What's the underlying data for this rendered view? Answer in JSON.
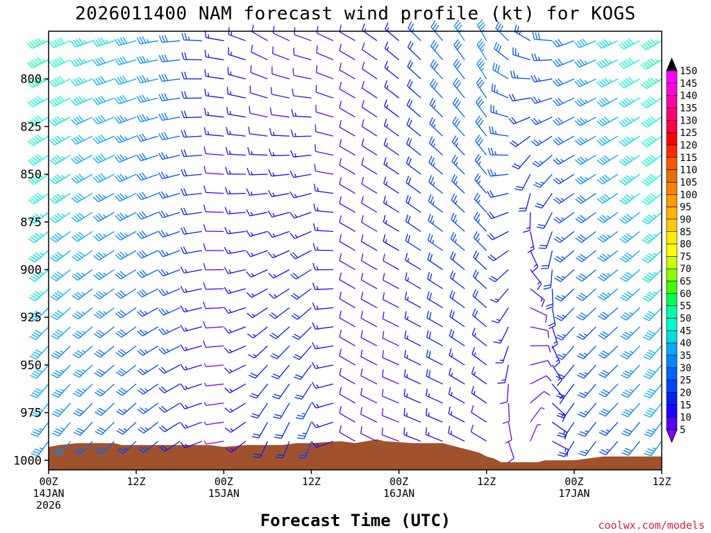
{
  "chart_data": {
    "type": "wind_barb_profile",
    "title": "2026011400 NAM forecast wind profile (kt) for KOGS",
    "xlabel": "Forecast Time (UTC)",
    "ylabel": "",
    "units": "kt",
    "credit": "coolwx.com/models",
    "y_axis": {
      "inverted": true,
      "range": [
        1005,
        775
      ],
      "ticks": [
        800,
        825,
        850,
        875,
        900,
        925,
        950,
        975,
        1000
      ],
      "tick_labels": [
        "800",
        "825",
        "850",
        "875",
        "900",
        "925",
        "950",
        "975",
        "1000"
      ]
    },
    "x_axis": {
      "range_hours": [
        0,
        84
      ],
      "ticks": [
        {
          "hour": 0,
          "lines": [
            "00Z",
            "14JAN",
            "2026"
          ]
        },
        {
          "hour": 12,
          "lines": [
            "12Z"
          ]
        },
        {
          "hour": 24,
          "lines": [
            "00Z",
            "15JAN"
          ]
        },
        {
          "hour": 36,
          "lines": [
            "12Z"
          ]
        },
        {
          "hour": 48,
          "lines": [
            "00Z",
            "16JAN"
          ]
        },
        {
          "hour": 60,
          "lines": [
            "12Z"
          ]
        },
        {
          "hour": 72,
          "lines": [
            "00Z",
            "17JAN"
          ]
        },
        {
          "hour": 84,
          "lines": [
            "12Z"
          ]
        }
      ]
    },
    "colorbar": {
      "labels": [
        "150",
        "145",
        "140",
        "135",
        "130",
        "125",
        "120",
        "115",
        "110",
        "105",
        "100",
        "95",
        "90",
        "85",
        "80",
        "75",
        "70",
        "65",
        "60",
        "55",
        "50",
        "45",
        "40",
        "35",
        "30",
        "25",
        "20",
        "15",
        "10",
        "5"
      ],
      "colors": [
        "#ff00ff",
        "#ff00dd",
        "#ff00aa",
        "#ff0077",
        "#ff0044",
        "#ff0000",
        "#ff2a00",
        "#ff5500",
        "#e87000",
        "#ff7f00",
        "#ff9900",
        "#ffb400",
        "#ffcc00",
        "#ffee00",
        "#ffff00",
        "#ccff00",
        "#88ff00",
        "#44ff00",
        "#00ff55",
        "#00ffaa",
        "#00ffcc",
        "#00dddd",
        "#00aaff",
        "#0088ff",
        "#0066ff",
        "#0044ff",
        "#0022ee",
        "#2200ff",
        "#5500ff",
        "#8800ff"
      ]
    },
    "terrain": {
      "color": "#a0522d",
      "surface_pressure_by_hour": [
        {
          "hour": 0,
          "p": 993
        },
        {
          "hour": 1.5,
          "p": 992
        },
        {
          "hour": 4,
          "p": 991
        },
        {
          "hour": 9,
          "p": 991
        },
        {
          "hour": 10,
          "p": 992
        },
        {
          "hour": 22,
          "p": 992
        },
        {
          "hour": 24,
          "p": 993
        },
        {
          "hour": 27,
          "p": 992
        },
        {
          "hour": 32,
          "p": 992
        },
        {
          "hour": 34,
          "p": 991
        },
        {
          "hour": 36,
          "p": 991
        },
        {
          "hour": 40,
          "p": 990
        },
        {
          "hour": 42,
          "p": 991
        },
        {
          "hour": 43.5,
          "p": 990
        },
        {
          "hour": 45,
          "p": 989
        },
        {
          "hour": 46,
          "p": 990
        },
        {
          "hour": 50,
          "p": 991
        },
        {
          "hour": 54,
          "p": 991
        },
        {
          "hour": 55,
          "p": 992
        },
        {
          "hour": 56,
          "p": 993
        },
        {
          "hour": 57,
          "p": 994
        },
        {
          "hour": 58,
          "p": 995
        },
        {
          "hour": 59,
          "p": 996
        },
        {
          "hour": 60,
          "p": 998
        },
        {
          "hour": 61,
          "p": 999
        },
        {
          "hour": 62,
          "p": 1001
        },
        {
          "hour": 64,
          "p": 1001
        },
        {
          "hour": 66,
          "p": 1001
        },
        {
          "hour": 67,
          "p": 1001
        },
        {
          "hour": 68,
          "p": 1000
        },
        {
          "hour": 70,
          "p": 1000
        },
        {
          "hour": 72,
          "p": 1000
        },
        {
          "hour": 74,
          "p": 999
        },
        {
          "hour": 76,
          "p": 998
        },
        {
          "hour": 80,
          "p": 998
        },
        {
          "hour": 84,
          "p": 998
        }
      ]
    },
    "wind_columns": [
      {
        "hour": 0,
        "dir_top": 245,
        "dir_bottom": 215,
        "spd_top": 55,
        "spd_bottom": 35
      },
      {
        "hour": 6,
        "dir_top": 250,
        "dir_bottom": 220,
        "spd_top": 45,
        "spd_bottom": 30
      },
      {
        "hour": 12,
        "dir_top": 255,
        "dir_bottom": 225,
        "spd_top": 40,
        "spd_bottom": 25
      },
      {
        "hour": 18,
        "dir_top": 265,
        "dir_bottom": 235,
        "spd_top": 30,
        "spd_bottom": 20
      },
      {
        "hour": 24,
        "dir_top": 280,
        "dir_bottom": 260,
        "spd_top": 15,
        "spd_bottom": 5
      },
      {
        "hour": 30,
        "dir_top": 300,
        "dir_bottom": 200,
        "spd_top": 10,
        "spd_bottom": 20
      },
      {
        "hour": 36,
        "dir_top": 290,
        "dir_bottom": 195,
        "spd_top": 10,
        "spd_bottom": 25
      },
      {
        "hour": 42,
        "dir_top": 300,
        "dir_bottom": 300,
        "spd_top": 10,
        "spd_bottom": 10
      },
      {
        "hour": 48,
        "dir_top": 310,
        "dir_bottom": 290,
        "spd_top": 15,
        "spd_bottom": 10
      },
      {
        "hour": 54,
        "dir_top": 320,
        "dir_bottom": 290,
        "spd_top": 30,
        "spd_bottom": 15
      },
      {
        "hour": 60,
        "dir_top": 330,
        "dir_bottom": 300,
        "spd_top": 35,
        "spd_bottom": 10
      },
      {
        "hour": 66,
        "dir_top": 300,
        "dir_bottom": 10,
        "spd_top": 25,
        "spd_bottom": 5
      },
      {
        "hour": 72,
        "dir_top": 250,
        "dir_bottom": 210,
        "spd_top": 30,
        "spd_bottom": 20
      },
      {
        "hour": 78,
        "dir_top": 245,
        "dir_bottom": 220,
        "spd_top": 45,
        "spd_bottom": 25
      },
      {
        "hour": 84,
        "dir_top": 240,
        "dir_bottom": 215,
        "spd_top": 55,
        "spd_bottom": 35
      }
    ]
  }
}
